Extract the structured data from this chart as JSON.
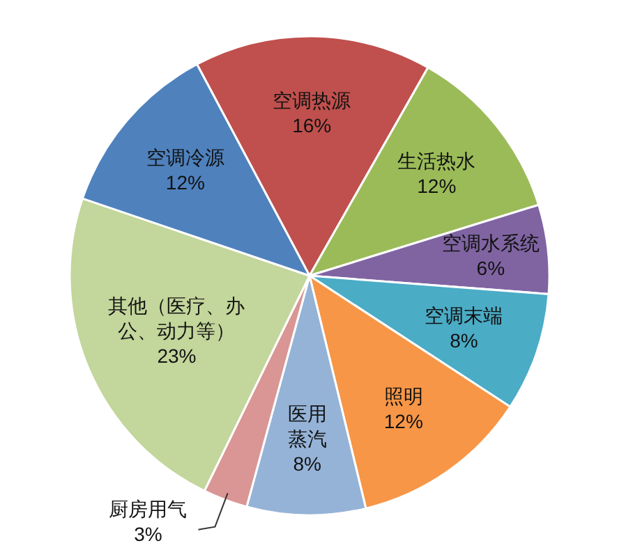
{
  "chart_data": {
    "type": "pie",
    "categories": [
      "空调热源",
      "生活热水",
      "空调水系统",
      "空调末端",
      "照明",
      "医用蒸汽",
      "厨房用气",
      "其他（医疗、办公、动力等）",
      "空调冷源"
    ],
    "values": [
      16,
      12,
      6,
      8,
      12,
      8,
      3,
      23,
      12
    ],
    "value_labels": [
      "16%",
      "12%",
      "6%",
      "8%",
      "12%",
      "8%",
      "3%",
      "23%",
      "12%"
    ],
    "colors": [
      "#c0504d",
      "#9bbb59",
      "#8064a2",
      "#4bacc6",
      "#f79646",
      "#95b3d7",
      "#d99694",
      "#c3d69b",
      "#4f81bd"
    ]
  }
}
